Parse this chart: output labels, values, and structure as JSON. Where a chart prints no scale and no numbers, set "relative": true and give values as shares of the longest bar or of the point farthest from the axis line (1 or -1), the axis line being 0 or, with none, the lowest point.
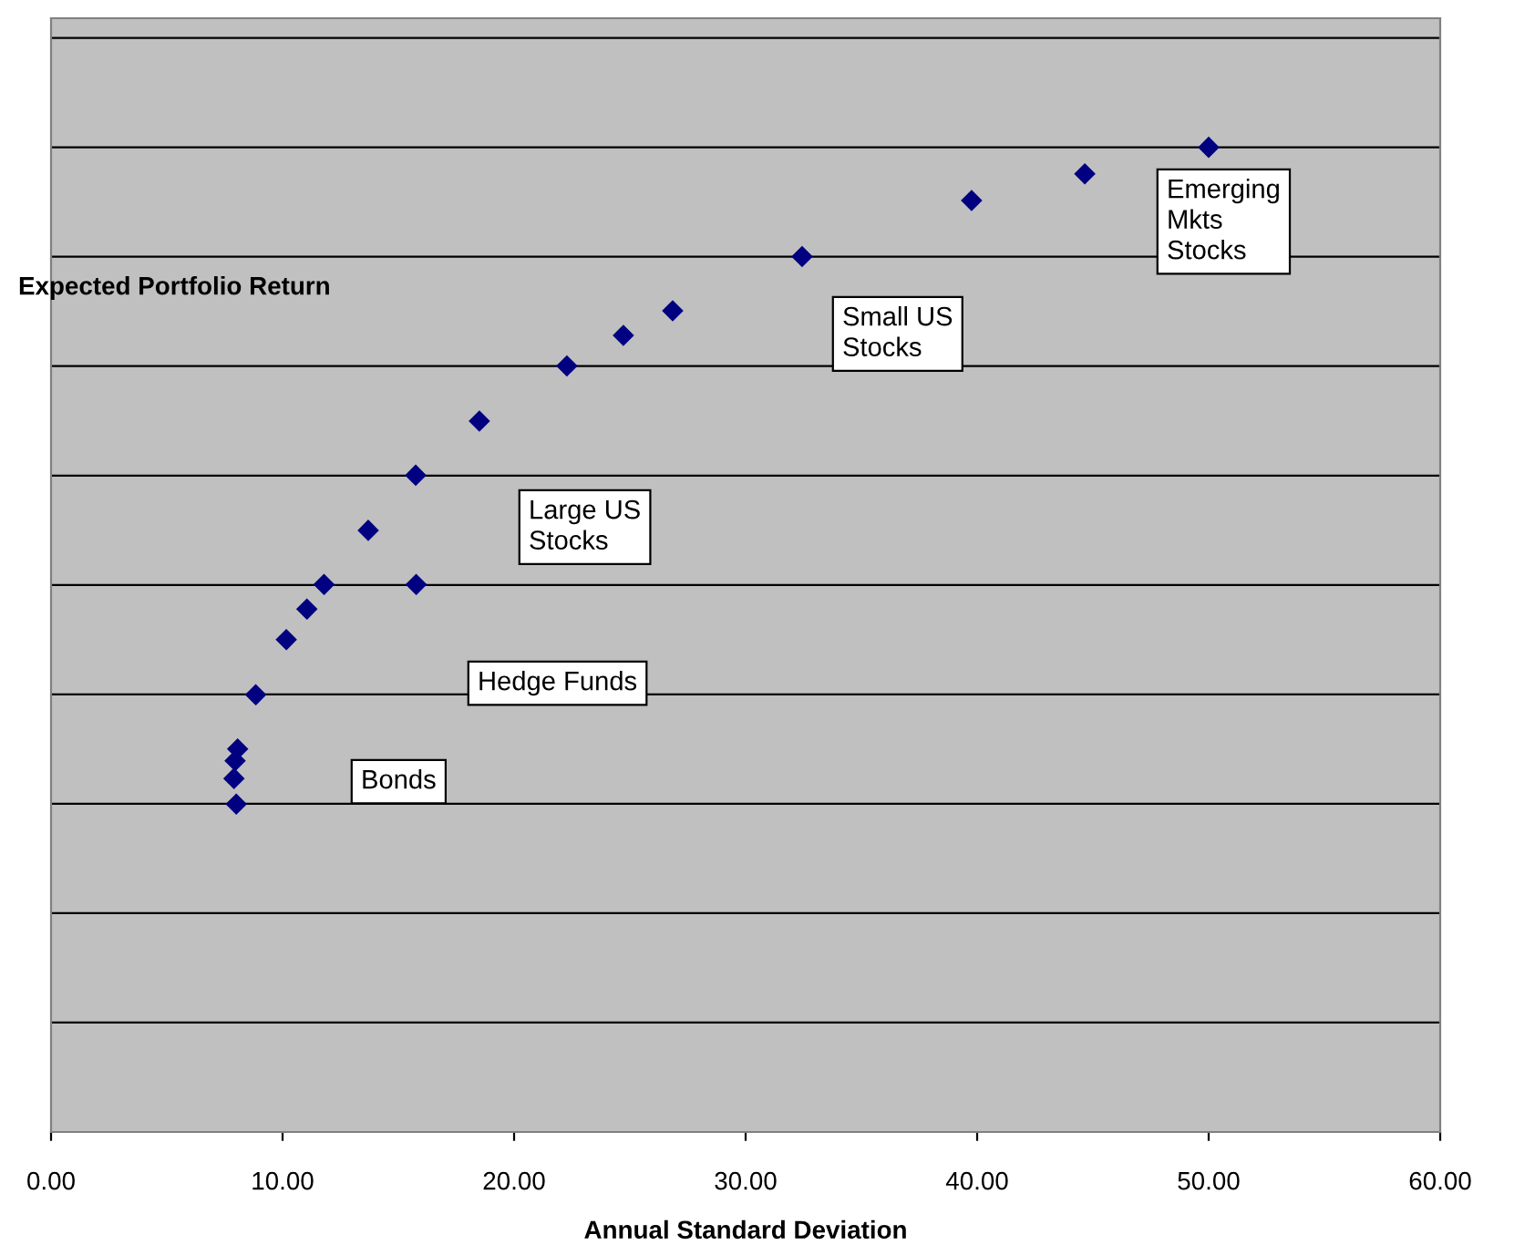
{
  "chart_data": {
    "type": "scatter",
    "relative": true,
    "xlabel": "Annual Standard Deviation",
    "ylabel": "Expected Portfolio Return",
    "x": [
      50.0,
      44.65,
      39.76,
      32.44,
      26.85,
      24.72,
      22.28,
      18.5,
      15.75,
      13.7,
      11.79,
      15.77,
      11.05,
      10.16,
      8.84,
      8.06,
      7.95,
      7.9,
      8.0
    ],
    "series": [
      {
        "color": "#000080",
        "values": [
          1,
          0.973,
          0.946,
          0.889,
          0.834,
          0.809,
          0.778,
          0.722,
          0.667,
          0.611,
          0.556,
          0.556,
          0.531,
          0.5,
          0.444,
          0.389,
          0.377,
          0.359,
          0.333
        ]
      }
    ],
    "xlim": [
      0,
      60
    ],
    "xticks": [
      {
        "value": 0,
        "label": "0.00"
      },
      {
        "value": 10,
        "label": "10.00"
      },
      {
        "value": 20,
        "label": "20.00"
      },
      {
        "value": 30,
        "label": "30.00"
      },
      {
        "value": 40,
        "label": "40.00"
      },
      {
        "value": 50,
        "label": "50.00"
      },
      {
        "value": 60,
        "label": "60.00"
      }
    ],
    "annotations": [
      "Emerging\nMkts\nStocks",
      "Small US\nStocks",
      "Large US\nStocks",
      "Hedge Funds",
      "Bonds"
    ],
    "marker": "diamond",
    "grid": "y"
  }
}
